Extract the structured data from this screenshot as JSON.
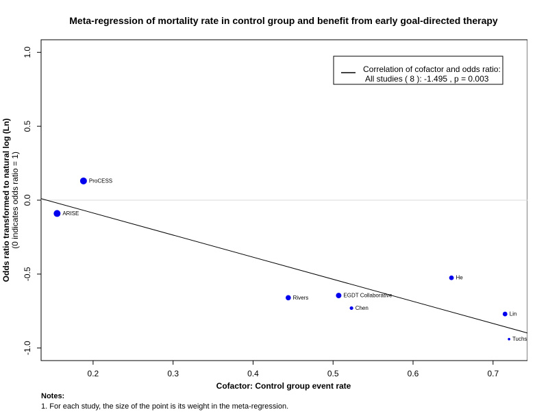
{
  "chart_data": {
    "type": "scatter",
    "title": "Meta-regression of  mortality rate in control group and benefit from early goal-directed therapy",
    "xlabel": "Cofactor:  Control group event rate",
    "ylabel": "Odds ratio transformed to natural log (Ln)",
    "ylabel_sub": "(0 indicates odds ratio = 1)",
    "xlim": [
      0.135,
      0.743
    ],
    "ylim": [
      -1.085,
      1.085
    ],
    "x_ticks": [
      0.2,
      0.3,
      0.4,
      0.5,
      0.6,
      0.7
    ],
    "x_tick_labels": [
      "0.2",
      "0.3",
      "0.4",
      "0.5",
      "0.6",
      "0.7"
    ],
    "y_ticks": [
      -1.0,
      -0.5,
      0.0,
      0.5,
      1.0
    ],
    "y_tick_labels": [
      "-1.0",
      "-0.5",
      "0.0",
      "0.5",
      "1.0"
    ],
    "reference_line_y": 0,
    "points": [
      {
        "label": "ProCESS",
        "x": 0.188,
        "y": 0.13,
        "weight": 5.0
      },
      {
        "label": "ARISE",
        "x": 0.155,
        "y": -0.09,
        "weight": 5.0
      },
      {
        "label": "Rivers",
        "x": 0.444,
        "y": -0.66,
        "weight": 3.8
      },
      {
        "label": "EGDT Collaborative",
        "x": 0.507,
        "y": -0.645,
        "weight": 4.0
      },
      {
        "label": "Chen",
        "x": 0.523,
        "y": -0.73,
        "weight": 2.6
      },
      {
        "label": "He",
        "x": 0.648,
        "y": -0.525,
        "weight": 3.4
      },
      {
        "label": "Lin",
        "x": 0.715,
        "y": -0.77,
        "weight": 3.4
      },
      {
        "label": "Tuchschmidt",
        "x": 0.72,
        "y": -0.94,
        "weight": 1.8
      }
    ],
    "regression": {
      "slope": -1.495,
      "intercept": 0.2124
    },
    "legend": {
      "placement": "top-right",
      "line1": "Correlation of cofactor and odds ratio:",
      "line2": "All studies ( 8 ): -1.495 , p = 0.003"
    }
  },
  "notes": {
    "header": "Notes:",
    "line1": "1. For each study, the size of the point is its weight in the meta-regression."
  }
}
